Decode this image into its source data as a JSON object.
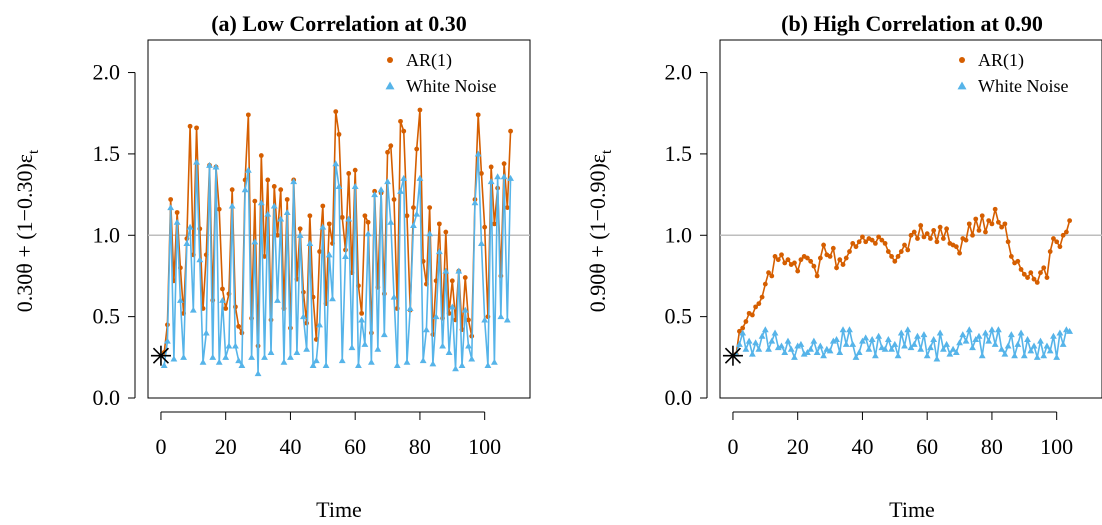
{
  "colors": {
    "ar1": "#D55E00",
    "white_noise": "#56B4E9",
    "reference_line": "#BEBEBE",
    "axis": "#000000"
  },
  "chart_data": [
    {
      "type": "line",
      "title": "(a) Low Correlation at 0.30",
      "ylabel_parts": [
        "0.30θ + (1−0.30)ε",
        "t"
      ],
      "xlabel": "Time",
      "xlim": [
        -4,
        114
      ],
      "ylim": [
        0.0,
        2.2
      ],
      "x_ticks": [
        0,
        20,
        40,
        60,
        80,
        100
      ],
      "x_tick_labels": [
        "0",
        "20",
        "40",
        "60",
        "80",
        "100"
      ],
      "y_ticks": [
        0.0,
        0.5,
        1.0,
        1.5,
        2.0
      ],
      "y_tick_labels": [
        "0.0",
        "0.5",
        "1.0",
        "1.5",
        "2.0"
      ],
      "reference_line_y": 1.0,
      "start_point": {
        "x": 0,
        "y": 0.26,
        "marker": "asterisk"
      },
      "legend": {
        "position": "top-right",
        "entries": [
          "AR(1)",
          "White Noise"
        ]
      },
      "x_start": 1,
      "series": [
        {
          "name": "AR(1)",
          "marker": "circle",
          "values": [
            0.28,
            0.45,
            1.22,
            0.72,
            1.14,
            0.8,
            0.52,
            0.98,
            1.67,
            0.88,
            1.66,
            1.04,
            0.55,
            0.88,
            1.43,
            0.6,
            1.42,
            1.16,
            0.67,
            0.55,
            0.64,
            1.28,
            0.56,
            0.44,
            0.4,
            1.34,
            1.74,
            0.49,
            1.21,
            0.32,
            1.49,
            0.87,
            1.34,
            0.48,
            1.3,
            1.0,
            1.28,
            0.55,
            1.22,
            0.43,
            1.34,
            0.73,
            1.04,
            0.65,
            0.46,
            1.12,
            0.62,
            0.36,
            0.9,
            1.18,
            0.58,
            1.07,
            0.95,
            1.76,
            1.62,
            1.11,
            0.91,
            1.38,
            0.77,
            1.4,
            0.69,
            0.52,
            1.12,
            1.08,
            0.4,
            1.27,
            0.68,
            1.26,
            0.64,
            1.51,
            1.55,
            1.22,
            0.55,
            1.7,
            1.64,
            1.12,
            0.54,
            1.17,
            1.53,
            1.77,
            0.84,
            0.7,
            1.17,
            0.39,
            0.72,
            1.07,
            0.49,
            1.02,
            0.52,
            0.72,
            0.48,
            0.78,
            0.42,
            0.74,
            0.48,
            0.38,
            1.22,
            1.74,
            1.38,
            1.05,
            0.5,
            1.42,
            1.07,
            1.29,
            0.75,
            1.44,
            1.17,
            1.64
          ],
          "x_start": 1
        },
        {
          "name": "White Noise",
          "marker": "triangle",
          "values": [
            0.2,
            0.35,
            1.17,
            0.24,
            1.08,
            0.6,
            0.25,
            0.95,
            1.05,
            0.54,
            1.45,
            0.85,
            0.22,
            0.4,
            1.43,
            0.25,
            1.42,
            0.22,
            0.6,
            0.25,
            0.32,
            1.18,
            0.32,
            0.23,
            0.2,
            1.28,
            1.4,
            0.25,
            0.96,
            0.15,
            1.2,
            0.25,
            1.13,
            0.28,
            1.18,
            0.6,
            1.1,
            0.22,
            1.14,
            0.25,
            1.33,
            0.28,
            1.0,
            0.5,
            0.3,
            0.95,
            0.2,
            0.23,
            0.45,
            1.05,
            0.2,
            0.88,
            0.61,
            1.44,
            1.3,
            0.23,
            0.87,
            1.1,
            0.31,
            1.3,
            0.2,
            0.48,
            0.33,
            1.01,
            0.22,
            1.25,
            0.3,
            1.28,
            0.39,
            1.33,
            1.08,
            0.62,
            0.2,
            1.27,
            1.35,
            0.22,
            0.55,
            1.06,
            1.13,
            1.35,
            0.23,
            0.42,
            1.01,
            0.21,
            0.5,
            0.9,
            0.32,
            0.78,
            0.28,
            0.56,
            0.18,
            0.78,
            0.2,
            0.54,
            0.32,
            0.24,
            1.2,
            1.5,
            0.95,
            0.48,
            0.2,
            1.33,
            0.22,
            1.36,
            0.5,
            1.36,
            0.48,
            1.35
          ],
          "x_start": 1
        }
      ]
    },
    {
      "type": "line",
      "title": "(b) High Correlation at 0.90",
      "ylabel_parts": [
        "0.90θ + (1−0.90)ε",
        "t"
      ],
      "xlabel": "Time",
      "xlim": [
        -4,
        114
      ],
      "ylim": [
        0.0,
        2.2
      ],
      "x_ticks": [
        0,
        20,
        40,
        60,
        80,
        100
      ],
      "x_tick_labels": [
        "0",
        "20",
        "40",
        "60",
        "80",
        "100"
      ],
      "y_ticks": [
        0.0,
        0.5,
        1.0,
        1.5,
        2.0
      ],
      "y_tick_labels": [
        "0.0",
        "0.5",
        "1.0",
        "1.5",
        "2.0"
      ],
      "reference_line_y": 1.0,
      "start_point": {
        "x": 0,
        "y": 0.26,
        "marker": "asterisk"
      },
      "legend": {
        "position": "top-right",
        "entries": [
          "AR(1)",
          "White Noise"
        ]
      },
      "x_start": 1,
      "series": [
        {
          "name": "AR(1)",
          "marker": "circle",
          "values": [
            0.27,
            0.41,
            0.43,
            0.47,
            0.52,
            0.51,
            0.56,
            0.58,
            0.62,
            0.7,
            0.77,
            0.75,
            0.87,
            0.85,
            0.88,
            0.83,
            0.85,
            0.82,
            0.83,
            0.78,
            0.85,
            0.87,
            0.86,
            0.84,
            0.81,
            0.75,
            0.86,
            0.94,
            0.88,
            0.87,
            0.92,
            0.8,
            0.85,
            0.82,
            0.86,
            0.9,
            0.95,
            0.93,
            0.96,
            0.99,
            0.96,
            0.98,
            0.97,
            0.95,
            0.99,
            0.97,
            0.95,
            0.9,
            0.87,
            0.84,
            0.87,
            0.9,
            0.94,
            0.91,
            1.0,
            1.02,
            0.98,
            1.06,
            0.99,
            1.01,
            0.98,
            1.03,
            0.96,
            1.05,
            0.98,
            1.04,
            0.95,
            0.94,
            0.93,
            0.89,
            0.98,
            0.97,
            1.07,
            1.0,
            1.1,
            1.03,
            1.12,
            1.02,
            1.09,
            1.07,
            1.16,
            1.08,
            1.05,
            1.07,
            0.96,
            0.87,
            0.83,
            0.84,
            0.79,
            0.76,
            0.74,
            0.77,
            0.73,
            0.71,
            0.77,
            0.8,
            0.74,
            0.9,
            0.98,
            0.96,
            0.93,
            1.0,
            1.02,
            1.09
          ],
          "x_start": 1
        },
        {
          "name": "White Noise",
          "marker": "triangle",
          "values": [
            0.27,
            0.33,
            0.4,
            0.3,
            0.35,
            0.27,
            0.34,
            0.3,
            0.38,
            0.42,
            0.3,
            0.35,
            0.4,
            0.31,
            0.32,
            0.28,
            0.35,
            0.3,
            0.25,
            0.32,
            0.33,
            0.27,
            0.28,
            0.3,
            0.35,
            0.28,
            0.32,
            0.26,
            0.3,
            0.29,
            0.35,
            0.36,
            0.28,
            0.42,
            0.33,
            0.42,
            0.33,
            0.25,
            0.28,
            0.35,
            0.37,
            0.3,
            0.36,
            0.26,
            0.38,
            0.31,
            0.3,
            0.36,
            0.3,
            0.33,
            0.26,
            0.4,
            0.32,
            0.42,
            0.31,
            0.33,
            0.38,
            0.3,
            0.39,
            0.26,
            0.31,
            0.36,
            0.24,
            0.4,
            0.3,
            0.33,
            0.27,
            0.3,
            0.28,
            0.34,
            0.39,
            0.35,
            0.42,
            0.31,
            0.36,
            0.38,
            0.26,
            0.4,
            0.35,
            0.42,
            0.33,
            0.42,
            0.3,
            0.27,
            0.32,
            0.39,
            0.26,
            0.33,
            0.4,
            0.26,
            0.36,
            0.29,
            0.32,
            0.25,
            0.35,
            0.26,
            0.32,
            0.29,
            0.38,
            0.25,
            0.4,
            0.33,
            0.42,
            0.41
          ],
          "x_start": 1
        }
      ]
    }
  ]
}
